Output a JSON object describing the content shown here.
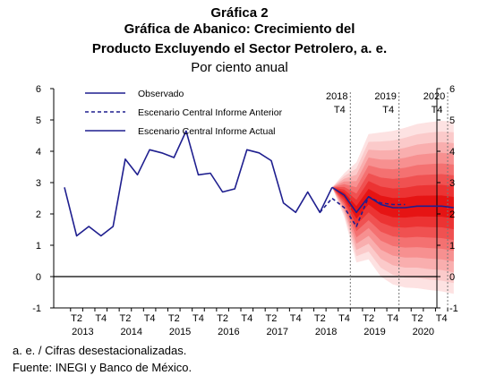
{
  "header": {
    "label": "Gráfica 2",
    "title_line1": "Gráfica de Abanico: Crecimiento del",
    "title_line2": "Producto Excluyendo el Sector Petrolero, a. e.",
    "subtitle": "Por ciento anual"
  },
  "footnotes": {
    "note": "a. e. / Cifras desestacionalizadas.",
    "source": "Fuente: INEGI y Banco de México."
  },
  "chart_data": {
    "type": "line",
    "ylim": [
      -1,
      6
    ],
    "yticks": [
      -1,
      0,
      1,
      2,
      3,
      4,
      5,
      6
    ],
    "grid": false,
    "legend_position": "top-left",
    "quarters": [
      "2013Q1",
      "2013Q2",
      "2013Q3",
      "2013Q4",
      "2014Q1",
      "2014Q2",
      "2014Q3",
      "2014Q4",
      "2015Q1",
      "2015Q2",
      "2015Q3",
      "2015Q4",
      "2016Q1",
      "2016Q2",
      "2016Q3",
      "2016Q4",
      "2017Q1",
      "2017Q2",
      "2017Q3",
      "2017Q4",
      "2018Q1",
      "2018Q2",
      "2018Q3",
      "2018Q4",
      "2019Q1",
      "2019Q2",
      "2019Q3",
      "2019Q4",
      "2020Q1",
      "2020Q2",
      "2020Q3",
      "2020Q4"
    ],
    "quarter_tick_labels": [
      "",
      "T2",
      "",
      "T4",
      "",
      "T2",
      "",
      "T4",
      "",
      "T2",
      "",
      "T4",
      "",
      "T2",
      "",
      "T4",
      "",
      "T2",
      "",
      "T4",
      "",
      "T2",
      "",
      "T4",
      "",
      "T2",
      "",
      "T4",
      "",
      "T2",
      "",
      "T4"
    ],
    "year_labels": [
      "2013",
      "2014",
      "2015",
      "2016",
      "2017",
      "2018",
      "2019",
      "2020"
    ],
    "reference_lines": [
      {
        "quarter": "2018Q4",
        "year": "2018",
        "quarter_label": "T4"
      },
      {
        "quarter": "2019Q4",
        "year": "2019",
        "quarter_label": "T4"
      },
      {
        "quarter": "2020Q4",
        "year": "2020",
        "quarter_label": "T4"
      }
    ],
    "series": [
      {
        "name": "Observado",
        "style": "solid",
        "color": "#1f1f8f",
        "start": "2013Q1",
        "values": [
          2.85,
          1.3,
          1.6,
          1.3,
          1.6,
          3.75,
          3.25,
          4.05,
          3.95,
          3.8,
          4.65,
          3.25,
          3.3,
          2.7,
          2.8,
          4.05,
          3.95,
          3.7,
          2.35,
          2.05,
          2.7,
          2.05,
          2.85
        ]
      },
      {
        "name": "Escenario Central Informe Anterior",
        "style": "dashed",
        "color": "#1f1f8f",
        "start": "2018Q2",
        "values": [
          2.05,
          2.5,
          2.2,
          1.6,
          2.55,
          2.35,
          2.3,
          2.3
        ]
      },
      {
        "name": "Escenario Central Informe Actual",
        "style": "solid",
        "color": "#1f1f8f",
        "start": "2018Q3",
        "values": [
          2.85,
          2.6,
          2.05,
          2.55,
          2.3,
          2.2,
          2.2,
          2.25,
          2.25,
          2.25,
          2.2
        ]
      }
    ],
    "fan": {
      "start": "2018Q3",
      "central": [
        2.85,
        2.6,
        2.05,
        2.55,
        2.3,
        2.2,
        2.2,
        2.25,
        2.25,
        2.25,
        2.2
      ],
      "upper_spread": [
        0,
        0.7,
        1.6,
        2.0,
        2.3,
        2.45,
        2.55,
        2.62,
        2.68,
        2.72,
        2.75
      ],
      "lower_spread": [
        0,
        0.7,
        1.6,
        2.0,
        2.3,
        2.45,
        2.55,
        2.62,
        2.68,
        2.72,
        2.75
      ],
      "band_colors": [
        "#fde2e2",
        "#fbcaca",
        "#f9aeae",
        "#f79090",
        "#f47171",
        "#f05151",
        "#ec3333",
        "#e61414"
      ]
    }
  }
}
